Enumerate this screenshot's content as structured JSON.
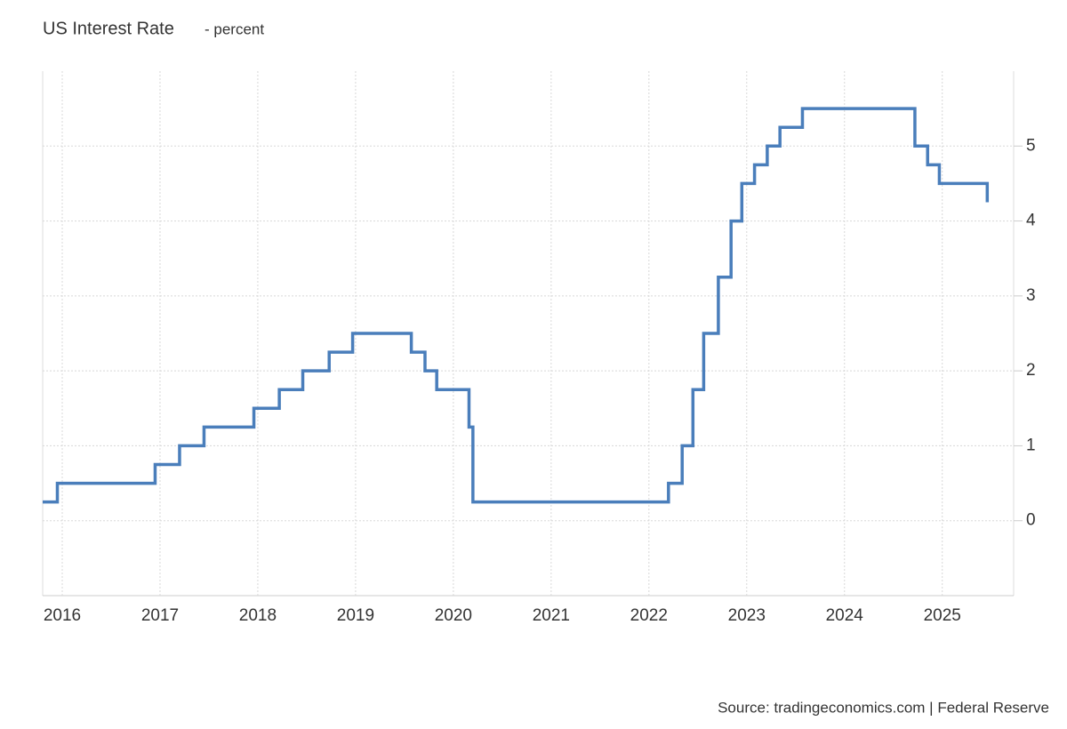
{
  "chart_data": {
    "type": "line",
    "step": "after",
    "title": "US Interest Rate",
    "subtitle": "- percent",
    "source": "Source: tradingeconomics.com | Federal Reserve",
    "x": [
      2015.8,
      2015.95,
      2016.95,
      2017.2,
      2017.45,
      2017.96,
      2018.22,
      2018.46,
      2018.73,
      2018.97,
      2019.57,
      2019.71,
      2019.83,
      2020.16,
      2020.2,
      2022.2,
      2022.34,
      2022.45,
      2022.56,
      2022.71,
      2022.84,
      2022.95,
      2023.08,
      2023.21,
      2023.34,
      2023.57,
      2024.72,
      2024.85,
      2024.97,
      2025.46
    ],
    "series": [
      {
        "name": "US Interest Rate",
        "color": "#4a7ebb",
        "values": [
          0.25,
          0.5,
          0.75,
          1.0,
          1.25,
          1.5,
          1.75,
          2.0,
          2.25,
          2.5,
          2.25,
          2.0,
          1.75,
          1.25,
          0.25,
          0.5,
          1.0,
          1.75,
          2.5,
          3.25,
          4.0,
          4.5,
          4.75,
          5.0,
          5.25,
          5.5,
          5.0,
          4.75,
          4.5,
          4.25
        ]
      }
    ],
    "xlim": [
      2015.8,
      2025.73
    ],
    "xticks": [
      2016,
      2017,
      2018,
      2019,
      2020,
      2021,
      2022,
      2023,
      2024,
      2025
    ],
    "ylim": [
      -1,
      6
    ],
    "yticks": [
      0,
      1,
      2,
      3,
      4,
      5
    ],
    "grid": true
  }
}
